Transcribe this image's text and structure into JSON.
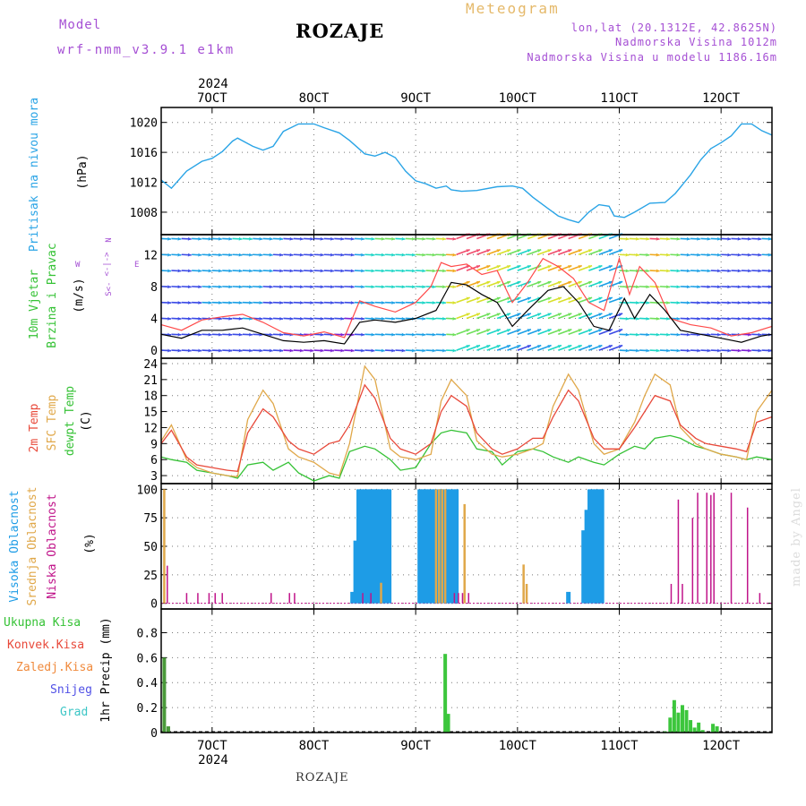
{
  "header": {
    "model_label": "Model",
    "model_name": "wrf-nmm_v3.9.1 e1km",
    "station": "ROZAJE",
    "meteogram_label": "Meteogram",
    "coords": "lon,lat (20.1312E, 42.8625N)",
    "elevation": "Nadmorska Visina 1012m",
    "model_elevation": "Nadmorska Visina u modelu 1186.16m"
  },
  "footer": {
    "station": "ROZAJE",
    "watermark": "made by Angel"
  },
  "colors": {
    "pressure": "#2aa4e6",
    "wind_mean": "#000000",
    "wind_gust": "#ff4a4a",
    "temp_2m": "#e8493a",
    "temp_sfc": "#e0a84a",
    "temp_dew": "#35c235",
    "cloud_high": "#1e9ce6",
    "cloud_mid": "#e0a84a",
    "cloud_low": "#c0148a",
    "precip": "#3cc63c",
    "purple_text": "#a54fd4"
  },
  "chart_data": [
    {
      "type": "line",
      "name": "pressure",
      "ylabel_main": "Pritisak na nivou mora",
      "ylabel_unit": "(hPa)",
      "top_year": "2024",
      "x_ticks": [
        "7OCT",
        "8OCT",
        "9OCT",
        "10OCT",
        "11OCT",
        "12OCT"
      ],
      "xlim": [
        6.5,
        12.5
      ],
      "ylim": [
        1005,
        1022
      ],
      "y_ticks": [
        1008,
        1012,
        1016,
        1020
      ],
      "grid": true,
      "x": [
        6.5,
        6.6,
        6.75,
        6.9,
        7.0,
        7.1,
        7.2,
        7.25,
        7.4,
        7.5,
        7.6,
        7.7,
        7.85,
        8.0,
        8.1,
        8.25,
        8.35,
        8.5,
        8.6,
        8.7,
        8.8,
        8.9,
        9.0,
        9.1,
        9.2,
        9.3,
        9.35,
        9.45,
        9.6,
        9.8,
        9.95,
        10.05,
        10.15,
        10.3,
        10.4,
        10.5,
        10.6,
        10.7,
        10.8,
        10.9,
        10.95,
        11.05,
        11.15,
        11.3,
        11.45,
        11.55,
        11.7,
        11.8,
        11.9,
        12.0,
        12.1,
        12.2,
        12.3,
        12.4,
        12.5
      ],
      "y": [
        1012.3,
        1011.2,
        1013.5,
        1014.8,
        1015.2,
        1016.1,
        1017.5,
        1017.9,
        1016.8,
        1016.3,
        1016.8,
        1018.8,
        1019.8,
        1019.8,
        1019.3,
        1018.6,
        1017.6,
        1015.8,
        1015.5,
        1016.0,
        1015.3,
        1013.5,
        1012.2,
        1011.8,
        1011.2,
        1011.5,
        1011.0,
        1010.8,
        1010.9,
        1011.4,
        1011.5,
        1011.2,
        1010.0,
        1008.5,
        1007.5,
        1007.0,
        1006.6,
        1008.0,
        1009.0,
        1008.8,
        1007.5,
        1007.3,
        1008.0,
        1009.2,
        1009.3,
        1010.5,
        1013.0,
        1015.0,
        1016.5,
        1017.3,
        1018.2,
        1019.8,
        1019.8,
        1018.9,
        1018.3
      ]
    },
    {
      "type": "line",
      "name": "wind",
      "ylabel_main": "10m Vjetar",
      "ylabel_sub": "Brzina i Pravac",
      "ylabel_unit": "(m/s)",
      "compass": {
        "n": "N",
        "w": "W",
        "e": "E",
        "s": "S",
        "arrows_we": "<-|->",
        "arrows_s": "<-"
      },
      "xlim": [
        6.5,
        12.5
      ],
      "ylim": [
        -1,
        14.5
      ],
      "y_ticks": [
        0,
        4,
        8,
        12
      ],
      "grid": true,
      "series": [
        {
          "name": "mean",
          "x": [
            6.5,
            6.7,
            6.9,
            7.1,
            7.3,
            7.5,
            7.7,
            7.9,
            8.1,
            8.3,
            8.45,
            8.6,
            8.8,
            9.0,
            9.2,
            9.35,
            9.5,
            9.65,
            9.8,
            9.95,
            10.1,
            10.3,
            10.45,
            10.6,
            10.75,
            10.9,
            11.05,
            11.15,
            11.3,
            11.45,
            11.6,
            11.8,
            12.0,
            12.2,
            12.4,
            12.5
          ],
          "y": [
            2.0,
            1.5,
            2.5,
            2.5,
            2.8,
            2.0,
            1.2,
            1.0,
            1.2,
            0.8,
            3.5,
            3.8,
            3.5,
            4.0,
            5.0,
            8.5,
            8.2,
            7.0,
            6.0,
            3.0,
            5.0,
            7.5,
            8.0,
            6.0,
            3.0,
            2.5,
            6.5,
            4.0,
            7.0,
            5.0,
            2.5,
            2.0,
            1.5,
            1.0,
            1.8,
            2.0
          ]
        },
        {
          "name": "gust",
          "x": [
            6.5,
            6.7,
            6.9,
            7.1,
            7.3,
            7.5,
            7.7,
            7.9,
            8.1,
            8.3,
            8.45,
            8.6,
            8.8,
            9.0,
            9.15,
            9.25,
            9.35,
            9.5,
            9.65,
            9.8,
            9.95,
            10.1,
            10.25,
            10.4,
            10.55,
            10.7,
            10.85,
            11.0,
            11.1,
            11.2,
            11.35,
            11.5,
            11.7,
            11.9,
            12.1,
            12.3,
            12.5
          ],
          "y": [
            3.2,
            2.5,
            3.8,
            4.2,
            4.5,
            3.5,
            2.2,
            1.8,
            2.3,
            1.6,
            6.2,
            5.5,
            4.8,
            6.0,
            8.0,
            11.0,
            10.5,
            10.8,
            9.5,
            10.0,
            6.0,
            8.5,
            11.5,
            10.5,
            9.0,
            6.0,
            5.0,
            11.5,
            7.0,
            10.5,
            8.5,
            4.0,
            3.2,
            2.8,
            1.8,
            2.2,
            3.0
          ]
        }
      ]
    },
    {
      "type": "line",
      "name": "temperature",
      "ylabel_t2m": "2m Temp",
      "ylabel_sfc": "SFC Temp",
      "ylabel_dew": "dewpt Temp",
      "ylabel_unit": "(C)",
      "xlim": [
        6.5,
        12.5
      ],
      "ylim": [
        1.5,
        25
      ],
      "y_ticks": [
        3,
        6,
        9,
        12,
        15,
        18,
        21,
        24
      ],
      "grid": true,
      "x": [
        6.5,
        6.6,
        6.75,
        6.85,
        7.0,
        7.15,
        7.25,
        7.35,
        7.5,
        7.6,
        7.75,
        7.85,
        8.0,
        8.15,
        8.25,
        8.35,
        8.5,
        8.6,
        8.75,
        8.85,
        9.0,
        9.15,
        9.25,
        9.35,
        9.5,
        9.6,
        9.75,
        9.85,
        10.0,
        10.15,
        10.25,
        10.35,
        10.5,
        10.6,
        10.75,
        10.85,
        11.0,
        11.15,
        11.25,
        11.35,
        11.5,
        11.6,
        11.75,
        11.85,
        12.0,
        12.15,
        12.25,
        12.35,
        12.5
      ],
      "series": [
        {
          "name": "2m",
          "y": [
            9.0,
            11.5,
            6.5,
            5.0,
            4.5,
            4.0,
            3.8,
            11.0,
            15.5,
            14.0,
            9.5,
            8.0,
            7.0,
            9.0,
            9.5,
            12.5,
            20.0,
            17.5,
            10.0,
            8.0,
            7.0,
            9.0,
            15.0,
            18.0,
            16.0,
            11.0,
            8.0,
            7.0,
            8.0,
            10.0,
            10.0,
            14.0,
            19.0,
            17.0,
            10.0,
            8.0,
            8.0,
            12.0,
            15.0,
            18.0,
            17.0,
            12.5,
            10.0,
            9.0,
            8.5,
            8.0,
            7.5,
            13.0,
            14.0
          ]
        },
        {
          "name": "SFC",
          "y": [
            9.5,
            12.5,
            6.0,
            4.5,
            3.5,
            3.0,
            2.8,
            13.5,
            19.0,
            16.5,
            8.0,
            6.5,
            5.5,
            3.5,
            3.0,
            9.0,
            23.5,
            21.0,
            8.0,
            6.5,
            6.0,
            7.0,
            17.0,
            21.0,
            18.0,
            9.5,
            7.0,
            6.5,
            7.0,
            8.0,
            9.0,
            16.0,
            22.0,
            19.0,
            9.0,
            7.0,
            8.0,
            13.0,
            18.0,
            22.0,
            20.0,
            12.0,
            9.0,
            8.0,
            7.0,
            6.5,
            6.0,
            15.0,
            19.0
          ]
        },
        {
          "name": "dew",
          "y": [
            6.5,
            6.0,
            5.5,
            4.0,
            3.5,
            3.0,
            2.5,
            5.0,
            5.5,
            4.0,
            5.5,
            3.5,
            2.0,
            3.0,
            2.5,
            7.5,
            8.5,
            8.0,
            6.0,
            4.0,
            4.5,
            9.0,
            11.0,
            11.5,
            11.0,
            8.0,
            7.5,
            5.0,
            7.5,
            8.0,
            7.5,
            6.5,
            5.5,
            6.5,
            5.5,
            5.0,
            7.0,
            8.5,
            8.0,
            10.0,
            10.5,
            10.0,
            8.5,
            8.0,
            7.0,
            6.5,
            6.0,
            6.5,
            6.0
          ]
        }
      ]
    },
    {
      "type": "bar",
      "name": "clouds",
      "ylabel_high": "Visoka Oblacnost",
      "ylabel_mid": "Srednja Oblacnost",
      "ylabel_low": "Niska Oblacnost",
      "ylabel_unit": "(%)",
      "xlim": [
        6.5,
        12.5
      ],
      "ylim": [
        -5,
        105
      ],
      "y_ticks": [
        0,
        25,
        50,
        75,
        100
      ],
      "grid": true,
      "series": [
        {
          "name": "high",
          "x": [
            8.38,
            8.41,
            8.44,
            8.47,
            8.5,
            8.53,
            8.56,
            8.59,
            8.62,
            8.65,
            8.68,
            8.71,
            8.74,
            9.04,
            9.07,
            9.1,
            9.13,
            9.16,
            9.19,
            9.22,
            9.25,
            9.28,
            9.31,
            9.34,
            9.37,
            9.4,
            10.5,
            10.65,
            10.68,
            10.71,
            10.74,
            10.77,
            10.8,
            10.83
          ],
          "y": [
            10,
            55,
            100,
            100,
            100,
            100,
            100,
            100,
            100,
            100,
            100,
            100,
            100,
            100,
            100,
            100,
            100,
            100,
            100,
            100,
            100,
            100,
            100,
            100,
            100,
            100,
            10,
            64,
            82,
            100,
            100,
            100,
            100,
            100
          ]
        },
        {
          "name": "mid",
          "x": [
            6.53,
            8.66,
            9.2,
            9.23,
            9.26,
            9.29,
            9.48,
            10.06,
            10.09
          ],
          "y": [
            100,
            18,
            100,
            100,
            100,
            100,
            87,
            34,
            17
          ]
        },
        {
          "name": "low",
          "x": [
            6.56,
            6.75,
            6.86,
            6.97,
            7.03,
            7.1,
            7.58,
            7.76,
            7.81,
            8.48,
            8.56,
            9.38,
            9.42,
            9.46,
            9.52,
            11.51,
            11.58,
            11.62,
            11.72,
            11.77,
            11.86,
            11.9,
            11.93,
            12.1,
            12.26,
            12.38
          ],
          "y": [
            33,
            9,
            9,
            9,
            9,
            9,
            9,
            9,
            9,
            9,
            9,
            9,
            9,
            9,
            9,
            17,
            91,
            17,
            75,
            97,
            97,
            95,
            97,
            97,
            84,
            9
          ]
        }
      ]
    },
    {
      "type": "bar",
      "name": "precipitation",
      "legend": [
        "Ukupna Kisa",
        "Konvek.Kisa",
        "Zaledj.Kisa",
        "Snijeg",
        "Grad"
      ],
      "legend_colors": [
        "#35c235",
        "#e8493a",
        "#f08a3c",
        "#5050e6",
        "#3cc6c6"
      ],
      "ylabel_unit": "1hr Precip (mm)",
      "x_ticks": [
        "7OCT",
        "8OCT",
        "9OCT",
        "10OCT",
        "11OCT",
        "12OCT"
      ],
      "bottom_year": "2024",
      "xlim": [
        6.5,
        12.5
      ],
      "ylim": [
        0,
        0.99
      ],
      "y_ticks": [
        0,
        0.2,
        0.4,
        0.6,
        0.8
      ],
      "grid": true,
      "x": [
        6.53,
        6.57,
        9.29,
        9.32,
        11.45,
        11.5,
        11.54,
        11.58,
        11.62,
        11.66,
        11.7,
        11.74,
        11.78,
        11.82,
        11.92,
        11.96
      ],
      "y": [
        0.6,
        0.05,
        0.63,
        0.15,
        0.01,
        0.12,
        0.26,
        0.16,
        0.22,
        0.18,
        0.1,
        0.04,
        0.08,
        0.02,
        0.07,
        0.05
      ]
    }
  ]
}
